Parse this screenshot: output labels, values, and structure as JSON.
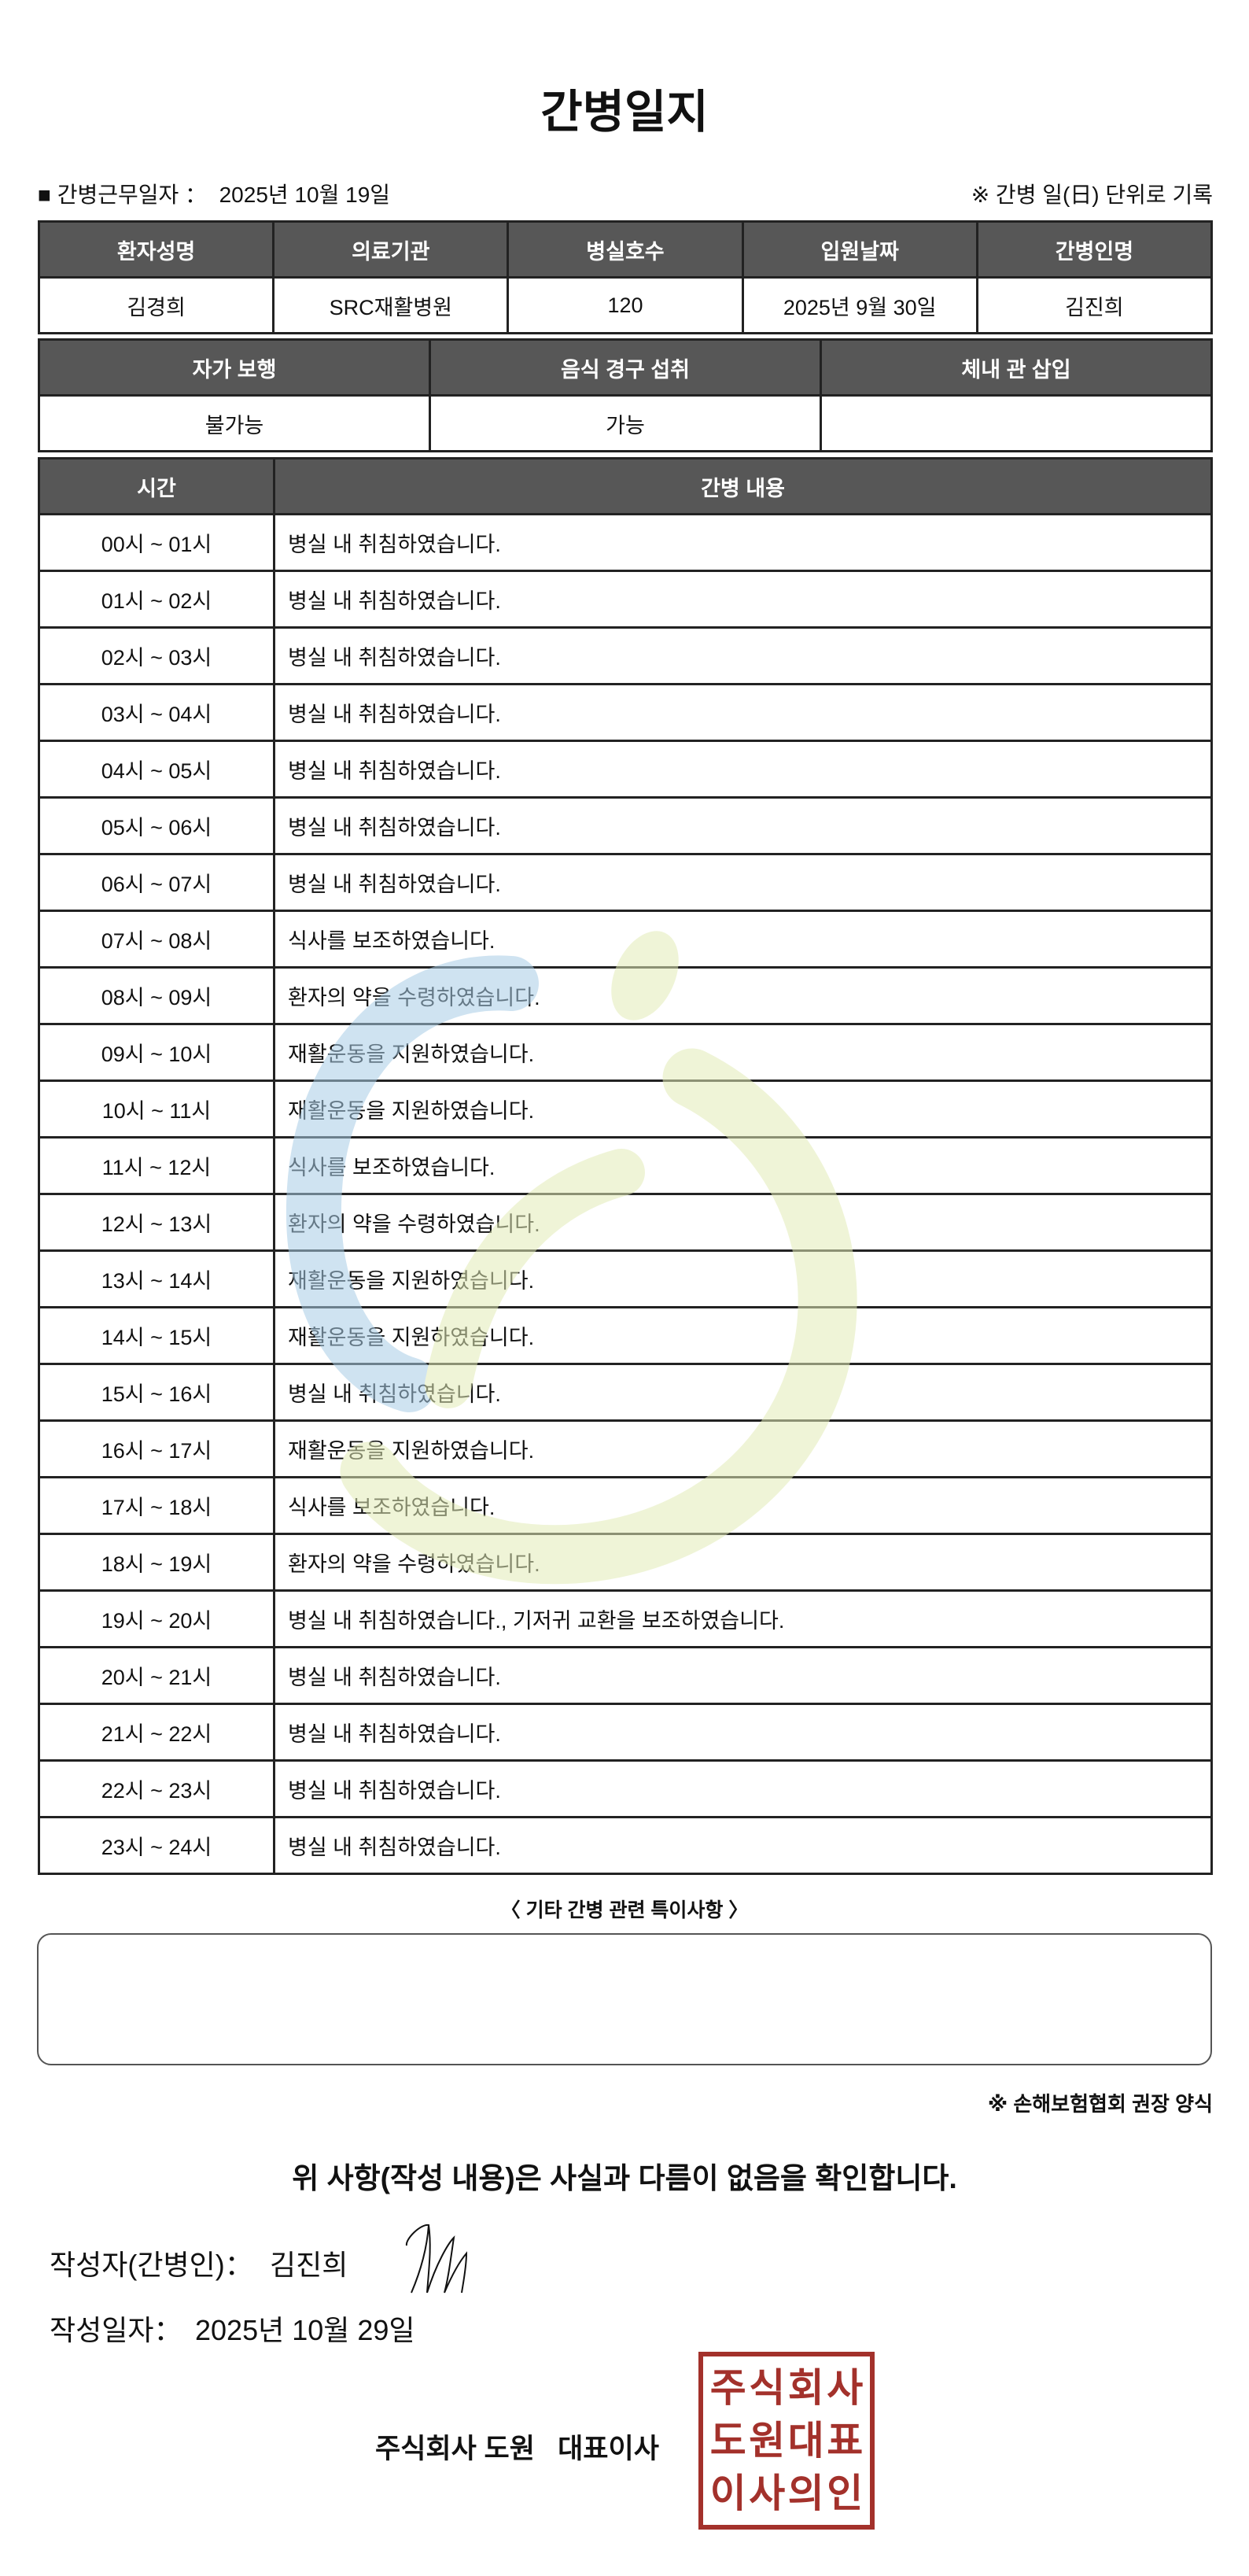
{
  "title": "간병일지",
  "info": {
    "work_date_label": "■ 간병근무일자 ：",
    "work_date": "2025년 10월 19일",
    "note": "※ 간병 일(日) 단위로 기록"
  },
  "patient_table": {
    "headers": [
      "환자성명",
      "의료기관",
      "병실호수",
      "입원날짜",
      "간병인명"
    ],
    "values": [
      "김경희",
      "SRC재활병원",
      "120",
      "2025년 9월 30일",
      "김진희"
    ]
  },
  "status_table": {
    "headers": [
      "자가 보행",
      "음식 경구 섭취",
      "체내 관 삽입"
    ],
    "values": [
      "불가능",
      "가능",
      ""
    ]
  },
  "log_table": {
    "headers": [
      "시간",
      "간병 내용"
    ],
    "rows": [
      {
        "time": "00시 ~ 01시",
        "content": "병실 내 취침하였습니다."
      },
      {
        "time": "01시 ~ 02시",
        "content": "병실 내 취침하였습니다."
      },
      {
        "time": "02시 ~ 03시",
        "content": "병실 내 취침하였습니다."
      },
      {
        "time": "03시 ~ 04시",
        "content": "병실 내 취침하였습니다."
      },
      {
        "time": "04시 ~ 05시",
        "content": "병실 내 취침하였습니다."
      },
      {
        "time": "05시 ~ 06시",
        "content": "병실 내 취침하였습니다."
      },
      {
        "time": "06시 ~ 07시",
        "content": "병실 내 취침하였습니다."
      },
      {
        "time": "07시 ~ 08시",
        "content": "식사를 보조하였습니다."
      },
      {
        "time": "08시 ~ 09시",
        "content": "환자의 약을 수령하였습니다."
      },
      {
        "time": "09시 ~ 10시",
        "content": "재활운동을 지원하였습니다."
      },
      {
        "time": "10시 ~ 11시",
        "content": "재활운동을 지원하였습니다."
      },
      {
        "time": "11시 ~ 12시",
        "content": "식사를 보조하였습니다."
      },
      {
        "time": "12시 ~ 13시",
        "content": "환자의 약을 수령하였습니다."
      },
      {
        "time": "13시 ~ 14시",
        "content": "재활운동을 지원하였습니다."
      },
      {
        "time": "14시 ~ 15시",
        "content": "재활운동을 지원하였습니다."
      },
      {
        "time": "15시 ~ 16시",
        "content": "병실 내 취침하였습니다."
      },
      {
        "time": "16시 ~ 17시",
        "content": "재활운동을 지원하였습니다."
      },
      {
        "time": "17시 ~ 18시",
        "content": "식사를 보조하였습니다."
      },
      {
        "time": "18시 ~ 19시",
        "content": "환자의 약을 수령하였습니다."
      },
      {
        "time": "19시 ~ 20시",
        "content": "병실 내 취침하였습니다., 기저귀 교환을 보조하였습니다."
      },
      {
        "time": "20시 ~ 21시",
        "content": "병실 내 취침하였습니다."
      },
      {
        "time": "21시 ~ 22시",
        "content": "병실 내 취침하였습니다."
      },
      {
        "time": "22시 ~ 23시",
        "content": "병실 내 취침하였습니다."
      },
      {
        "time": "23시 ~ 24시",
        "content": "병실 내 취침하였습니다."
      }
    ]
  },
  "notes": {
    "caption": "〈 기타 간병 관련 특이사항 〉",
    "content": ""
  },
  "form_source": "※ 손해보험협회 권장 양식",
  "confirmation": "위 사항(작성 내용)은 사실과 다름이 없음을 확인합니다.",
  "writer": {
    "label": "작성자(간병인)：",
    "name": "김진희"
  },
  "written_date": {
    "label": "작성일자：",
    "value": "2025년 10월 29일"
  },
  "company": "주식회사 도원   대표이사",
  "seal": {
    "text": [
      "주",
      "식",
      "회",
      "사",
      "도",
      "원",
      "대",
      "표",
      "이",
      "사",
      "의",
      "인"
    ],
    "color": "#a3312b"
  },
  "colors": {
    "header_bg": "#575757",
    "watermark_blue": "#a9cde6",
    "watermark_green": "#e3ecb8"
  }
}
